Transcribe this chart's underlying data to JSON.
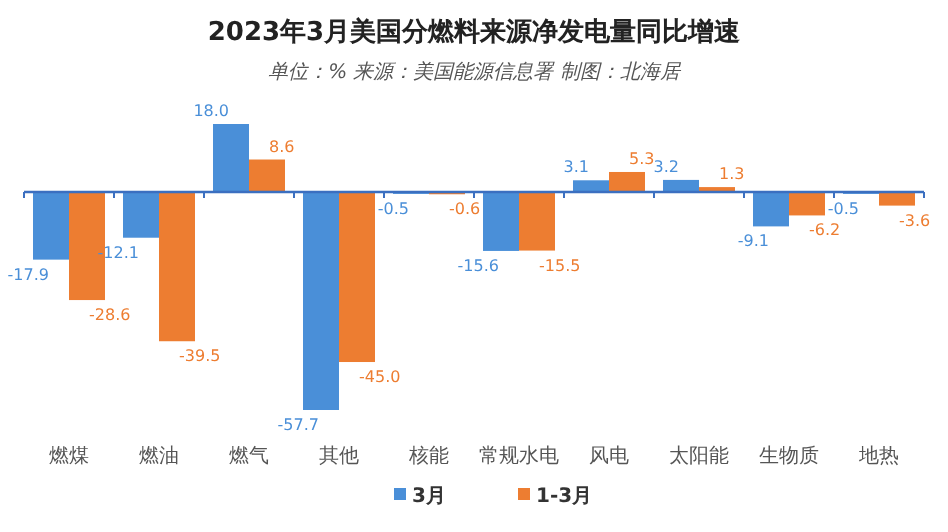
{
  "chart_data": {
    "type": "bar",
    "title": "2023年3月美国分燃料来源净发电量同比增速",
    "subtitle": "单位：% 来源：美国能源信息署 制图：北海居",
    "legend": "bottom",
    "ref_lines": [
      {
        "axis": "y",
        "value": 0,
        "color": "#3b6fc0"
      }
    ],
    "categories": [
      "燃煤",
      "燃油",
      "燃气",
      "其他",
      "核能",
      "常规水电",
      "风电",
      "太阳能",
      "生物质",
      "地热"
    ],
    "series": [
      {
        "name": "3月",
        "color": "#4a8fd8",
        "values": [
          -17.9,
          -12.1,
          18.0,
          -57.7,
          -0.5,
          -15.6,
          3.1,
          3.2,
          -9.1,
          -0.5
        ],
        "value_labels": [
          "-17.9",
          "-12.1",
          "18.0",
          "-57.7",
          "-0.5",
          "-15.6",
          "3.1",
          "3.2",
          "-9.1",
          "-0.5"
        ]
      },
      {
        "name": "1-3月",
        "color": "#ed7d31",
        "values": [
          -28.6,
          -39.5,
          8.6,
          -45.0,
          -0.6,
          -15.5,
          5.3,
          1.3,
          -6.2,
          -3.6
        ],
        "value_labels": [
          "-28.6",
          "-39.5",
          "8.6",
          "-45.0",
          "-0.6",
          "-15.5",
          "5.3",
          "1.3",
          "-6.2",
          "-3.6"
        ]
      }
    ]
  }
}
